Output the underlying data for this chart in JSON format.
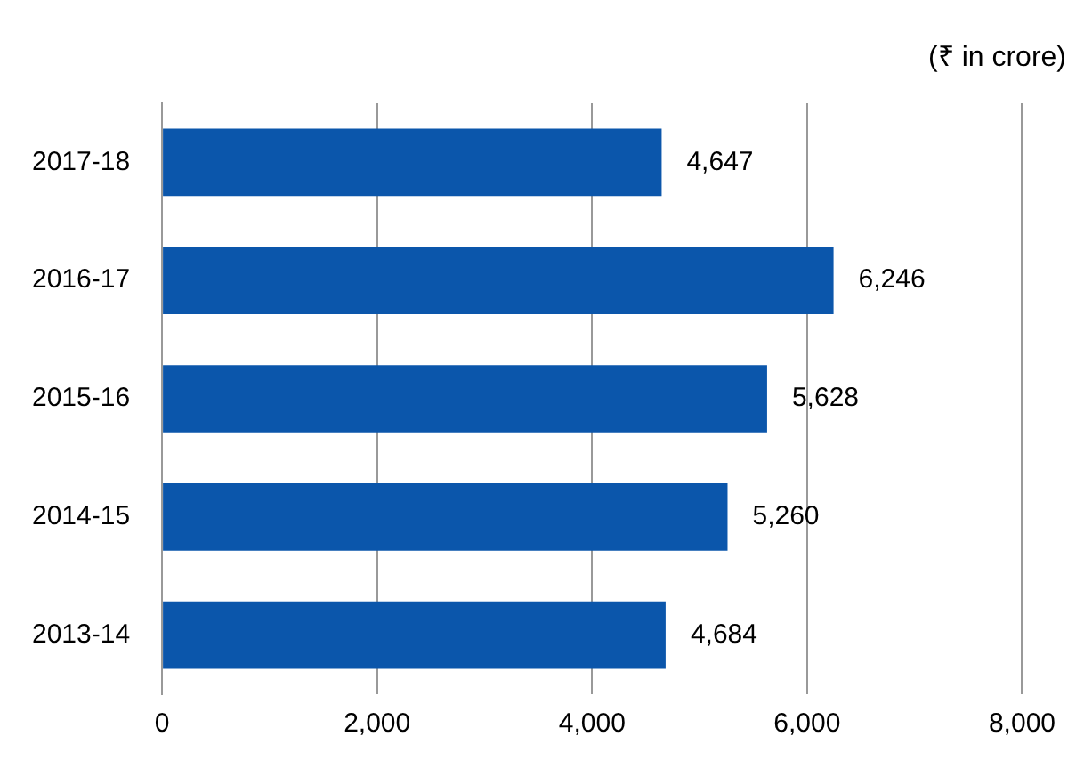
{
  "chart_data": {
    "type": "bar",
    "orientation": "horizontal",
    "annotations": [
      "(₹ in crore)"
    ],
    "categories": [
      "2017-18",
      "2016-17",
      "2015-16",
      "2014-15",
      "2013-14"
    ],
    "values": [
      4647,
      6246,
      5628,
      5260,
      4684
    ],
    "value_labels": [
      "4,647",
      "6,246",
      "5,628",
      "5,260",
      "4,684"
    ],
    "color": "#0b56ab",
    "xlim": [
      0,
      8000
    ],
    "xticks": [
      0,
      {
        "value": 2000,
        "label": "2,000"
      },
      {
        "value": 4000,
        "label": "4,000"
      },
      {
        "value": 6000,
        "label": "6,000"
      },
      {
        "value": 8000,
        "label": "8,000"
      }
    ],
    "grid": "x",
    "legend": false
  }
}
